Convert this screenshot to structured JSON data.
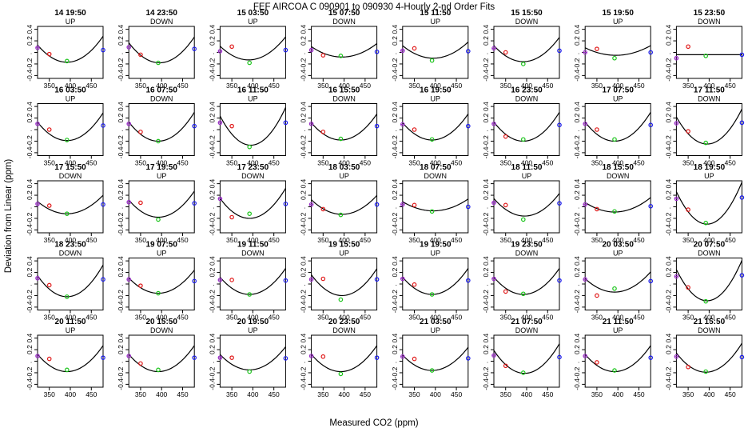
{
  "figure": {
    "title": "FEF   AIRCOA C   090901 to 090930   4-Hourly 2-nd Order Fits",
    "xlabel": "Measured CO2 (ppm)",
    "ylabel": "Deviation from Linear (ppm)"
  },
  "chart_data": {
    "type": "scatter",
    "xlim": [
      322,
      478
    ],
    "ylim": [
      -0.45,
      0.45
    ],
    "xticks": [
      350,
      400,
      450
    ],
    "yticks": [
      0.4,
      0.2,
      0.0,
      -0.2,
      -0.4
    ],
    "ytick_labels": [
      "0.4",
      "0.2",
      ".",
      "-0.2",
      "-0.4"
    ],
    "colors": {
      "std_low": "#9b30c8",
      "std_mid_low": "#e01818",
      "std_mid_high": "#19c419",
      "std_high": "#1a1aee",
      "fit_curve": "#000000"
    },
    "standards_x": [
      322,
      350,
      392,
      478
    ],
    "panels": [
      {
        "title": "14 19:50",
        "mode": "UP",
        "a": 0.45,
        "x0": 392,
        "y0": -0.17,
        "points": [
          0.08,
          -0.03,
          -0.15,
          0.04
        ]
      },
      {
        "title": "14 23:50",
        "mode": "DOWN",
        "a": 0.48,
        "x0": 395,
        "y0": -0.18,
        "points": [
          0.09,
          -0.04,
          -0.18,
          0.06
        ]
      },
      {
        "title": "15 03:50",
        "mode": "UP",
        "a": 0.38,
        "x0": 390,
        "y0": -0.13,
        "points": [
          0.02,
          0.1,
          -0.18,
          0.04
        ]
      },
      {
        "title": "15 07:50",
        "mode": "DOWN",
        "a": 0.25,
        "x0": 395,
        "y0": -0.08,
        "points": [
          0.04,
          -0.05,
          -0.06,
          0.01
        ]
      },
      {
        "title": "15 11:50",
        "mode": "UP",
        "a": 0.3,
        "x0": 395,
        "y0": -0.1,
        "points": [
          0.03,
          0.07,
          -0.14,
          0.02
        ]
      },
      {
        "title": "15 15:50",
        "mode": "DOWN",
        "a": 0.42,
        "x0": 392,
        "y0": -0.16,
        "points": [
          0.07,
          0.0,
          -0.2,
          0.03
        ]
      },
      {
        "title": "15 19:50",
        "mode": "UP",
        "a": 0.18,
        "x0": 395,
        "y0": -0.05,
        "points": [
          0.0,
          0.06,
          -0.1,
          0.0
        ]
      },
      {
        "title": "15 23:50",
        "mode": "DOWN",
        "a": 0.0,
        "x0": 392,
        "y0": -0.04,
        "points": [
          -0.1,
          0.1,
          -0.06,
          -0.04
        ]
      },
      {
        "title": "16 03:50",
        "mode": "UP",
        "a": 0.48,
        "x0": 392,
        "y0": -0.19,
        "points": [
          0.1,
          0.0,
          -0.18,
          0.07
        ]
      },
      {
        "title": "16 07:50",
        "mode": "DOWN",
        "a": 0.5,
        "x0": 392,
        "y0": -0.2,
        "points": [
          0.1,
          -0.04,
          -0.2,
          0.06
        ]
      },
      {
        "title": "16 11:50",
        "mode": "UP",
        "a": 0.7,
        "x0": 395,
        "y0": -0.27,
        "points": [
          0.12,
          0.06,
          -0.3,
          0.12
        ]
      },
      {
        "title": "16 15:50",
        "mode": "DOWN",
        "a": 0.45,
        "x0": 392,
        "y0": -0.18,
        "points": [
          0.1,
          -0.04,
          -0.16,
          0.06
        ]
      },
      {
        "title": "16 19:50",
        "mode": "UP",
        "a": 0.45,
        "x0": 392,
        "y0": -0.18,
        "points": [
          0.09,
          0.0,
          -0.17,
          0.06
        ]
      },
      {
        "title": "16 23:50",
        "mode": "DOWN",
        "a": 0.5,
        "x0": 392,
        "y0": -0.2,
        "points": [
          0.1,
          -0.12,
          -0.17,
          0.08
        ]
      },
      {
        "title": "17 07:50",
        "mode": "UP",
        "a": 0.5,
        "x0": 392,
        "y0": -0.2,
        "points": [
          0.1,
          0.0,
          -0.17,
          0.08
        ]
      },
      {
        "title": "17 11:50",
        "mode": "DOWN",
        "a": 0.65,
        "x0": 395,
        "y0": -0.25,
        "points": [
          0.11,
          -0.03,
          -0.23,
          0.12
        ]
      },
      {
        "title": "17 15:50",
        "mode": "DOWN",
        "a": 0.32,
        "x0": 392,
        "y0": -0.12,
        "points": [
          0.05,
          0.02,
          -0.12,
          0.04
        ]
      },
      {
        "title": "17 19:50",
        "mode": "UP",
        "a": 0.45,
        "x0": 392,
        "y0": -0.18,
        "points": [
          0.08,
          0.07,
          -0.22,
          0.06
        ]
      },
      {
        "title": "17 23:50",
        "mode": "DOWN",
        "a": 0.52,
        "x0": 392,
        "y0": -0.2,
        "points": [
          0.14,
          -0.18,
          -0.12,
          0.05
        ]
      },
      {
        "title": "18 03:50",
        "mode": "UP",
        "a": 0.35,
        "x0": 395,
        "y0": -0.13,
        "points": [
          0.04,
          -0.04,
          -0.14,
          0.04
        ]
      },
      {
        "title": "18 07:50",
        "mode": "DOWN",
        "a": 0.22,
        "x0": 395,
        "y0": -0.07,
        "points": [
          0.04,
          0.03,
          -0.08,
          0.0
        ]
      },
      {
        "title": "18 11:50",
        "mode": "UP",
        "a": 0.42,
        "x0": 395,
        "y0": -0.16,
        "points": [
          0.07,
          0.03,
          -0.22,
          0.06
        ]
      },
      {
        "title": "18 15:50",
        "mode": "DOWN",
        "a": 0.25,
        "x0": 392,
        "y0": -0.09,
        "points": [
          0.04,
          -0.04,
          -0.08,
          0.01
        ]
      },
      {
        "title": "18 19:50",
        "mode": "UP",
        "a": 0.78,
        "x0": 395,
        "y0": -0.3,
        "points": [
          0.14,
          -0.05,
          -0.28,
          0.16
        ]
      },
      {
        "title": "18 23:50",
        "mode": "DOWN",
        "a": 0.55,
        "x0": 392,
        "y0": -0.22,
        "points": [
          0.1,
          -0.02,
          -0.22,
          0.08
        ]
      },
      {
        "title": "19 07:50",
        "mode": "UP",
        "a": 0.4,
        "x0": 392,
        "y0": -0.16,
        "points": [
          0.08,
          -0.03,
          -0.16,
          0.05
        ]
      },
      {
        "title": "19 11:50",
        "mode": "DOWN",
        "a": 0.45,
        "x0": 392,
        "y0": -0.18,
        "points": [
          0.07,
          0.07,
          -0.18,
          0.06
        ]
      },
      {
        "title": "19 15:50",
        "mode": "UP",
        "a": 0.5,
        "x0": 395,
        "y0": -0.2,
        "points": [
          0.08,
          0.09,
          -0.27,
          0.08
        ]
      },
      {
        "title": "19 19:50",
        "mode": "UP",
        "a": 0.45,
        "x0": 392,
        "y0": -0.18,
        "points": [
          0.09,
          -0.01,
          -0.18,
          0.06
        ]
      },
      {
        "title": "19 23:50",
        "mode": "DOWN",
        "a": 0.45,
        "x0": 392,
        "y0": -0.18,
        "points": [
          0.09,
          -0.13,
          -0.17,
          0.06
        ]
      },
      {
        "title": "20 03:50",
        "mode": "UP",
        "a": 0.35,
        "x0": 392,
        "y0": -0.14,
        "points": [
          0.08,
          -0.2,
          -0.08,
          0.05
        ]
      },
      {
        "title": "20 07:50",
        "mode": "DOWN",
        "a": 0.75,
        "x0": 395,
        "y0": -0.29,
        "points": [
          0.13,
          -0.06,
          -0.3,
          0.15
        ]
      },
      {
        "title": "20 11:50",
        "mode": "UP",
        "a": 0.45,
        "x0": 392,
        "y0": -0.18,
        "points": [
          0.09,
          0.04,
          -0.15,
          0.06
        ]
      },
      {
        "title": "20 15:50",
        "mode": "DOWN",
        "a": 0.45,
        "x0": 392,
        "y0": -0.18,
        "points": [
          0.09,
          -0.04,
          -0.15,
          0.06
        ]
      },
      {
        "title": "20 19:50",
        "mode": "UP",
        "a": 0.4,
        "x0": 392,
        "y0": -0.15,
        "points": [
          0.06,
          0.06,
          -0.18,
          0.05
        ]
      },
      {
        "title": "20 23:50",
        "mode": "DOWN",
        "a": 0.45,
        "x0": 392,
        "y0": -0.18,
        "points": [
          0.09,
          0.08,
          -0.22,
          0.06
        ]
      },
      {
        "title": "21 03:50",
        "mode": "UP",
        "a": 0.4,
        "x0": 392,
        "y0": -0.16,
        "points": [
          0.08,
          0.04,
          -0.16,
          0.05
        ]
      },
      {
        "title": "21 07:50",
        "mode": "DOWN",
        "a": 0.55,
        "x0": 395,
        "y0": -0.21,
        "points": [
          0.1,
          -0.08,
          -0.2,
          0.07
        ]
      },
      {
        "title": "21 11:50",
        "mode": "UP",
        "a": 0.45,
        "x0": 392,
        "y0": -0.18,
        "points": [
          0.09,
          -0.02,
          -0.16,
          0.06
        ]
      },
      {
        "title": "21 15:50",
        "mode": "DOWN",
        "a": 0.5,
        "x0": 392,
        "y0": -0.19,
        "points": [
          0.08,
          -0.1,
          -0.18,
          0.07
        ]
      }
    ]
  }
}
